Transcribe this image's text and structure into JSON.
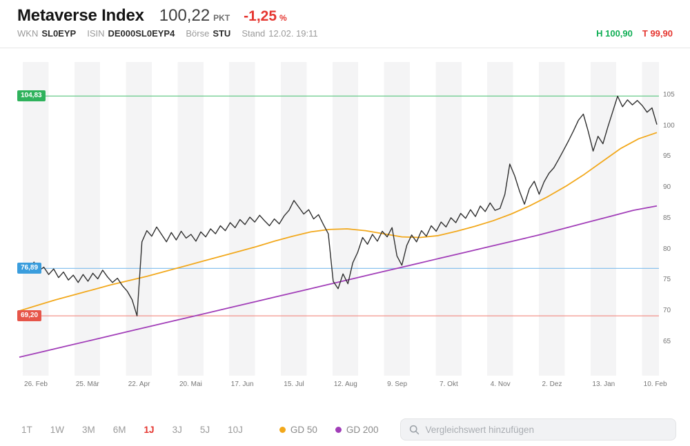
{
  "header": {
    "title": "Metaverse Index",
    "price": "100,22",
    "price_unit": "PKT",
    "change": "-1,25",
    "change_unit": "%",
    "change_color": "#e5352f",
    "meta": [
      {
        "label": "WKN",
        "value": "SL0EYP",
        "bold": true
      },
      {
        "label": "ISIN",
        "value": "DE000SL0EYP4",
        "bold": true
      },
      {
        "label": "Börse",
        "value": "STU",
        "bold": true
      },
      {
        "label": "Stand",
        "value": "12.02. 19:11",
        "bold": false
      }
    ],
    "high_label": "H",
    "high_value": "100,90",
    "high_color": "#0fae54",
    "low_label": "T",
    "low_value": "99,90",
    "low_color": "#e5352f"
  },
  "chart_data": {
    "type": "line",
    "title": "Metaverse Index — 1 Jahr",
    "x_labels": [
      "26. Feb",
      "25. Mär",
      "22. Apr",
      "20. Mai",
      "17. Jun",
      "15. Jul",
      "12. Aug",
      "9. Sep",
      "7. Okt",
      "4. Nov",
      "2. Dez",
      "13. Jan",
      "10. Feb"
    ],
    "y_ticks": [
      105,
      100,
      95,
      90,
      85,
      80,
      75,
      70,
      65
    ],
    "ylim": [
      62,
      108
    ],
    "y_axis_side": "right",
    "reference_lines": [
      {
        "id": "high",
        "label": "104,83",
        "value": 104.83,
        "line_color": "#57c47c",
        "badge_color": "#2fb25c"
      },
      {
        "id": "mid",
        "label": "76,89",
        "value": 76.89,
        "line_color": "#7cbcec",
        "badge_color": "#3a9ddd"
      },
      {
        "id": "low",
        "label": "69,20",
        "value": 69.2,
        "line_color": "#f2867c",
        "badge_color": "#e65549"
      }
    ],
    "series": [
      {
        "name": "GD 200",
        "color": "#a13db8",
        "width": 1.8,
        "values": [
          62.5,
          63.4,
          64.3,
          65.2,
          66.1,
          67.0,
          67.9,
          68.8,
          69.7,
          70.6,
          71.5,
          72.4,
          73.3,
          74.2,
          75.1,
          76.0,
          76.9,
          77.8,
          78.7,
          79.6,
          80.5,
          81.4,
          82.3,
          83.3,
          84.3,
          85.3,
          86.3,
          87.0
        ]
      },
      {
        "name": "GD 50",
        "color": "#f2a81b",
        "width": 1.8,
        "values": [
          70.0,
          70.9,
          71.8,
          72.6,
          73.4,
          74.2,
          74.9,
          75.6,
          76.4,
          77.2,
          78.0,
          78.8,
          79.6,
          80.4,
          81.3,
          82.1,
          82.8,
          83.2,
          83.3,
          83.0,
          82.5,
          82.0,
          81.9,
          82.2,
          82.9,
          83.7,
          84.6,
          85.7,
          87.0,
          88.5,
          90.2,
          92.1,
          94.2,
          96.3,
          97.9,
          98.9
        ]
      },
      {
        "name": "Metaverse Index",
        "color": "#2e2e2e",
        "width": 1.4,
        "values": [
          76.4,
          77.6,
          76.8,
          77.9,
          76.5,
          77.1,
          75.9,
          76.8,
          75.4,
          76.3,
          75.0,
          75.8,
          74.6,
          75.9,
          74.8,
          76.1,
          75.2,
          76.6,
          75.5,
          74.6,
          75.3,
          74.1,
          73.2,
          71.8,
          69.2,
          81.2,
          83.0,
          82.1,
          83.6,
          82.4,
          81.2,
          82.7,
          81.5,
          82.9,
          81.8,
          82.4,
          81.3,
          82.8,
          82.0,
          83.3,
          82.5,
          83.8,
          83.0,
          84.3,
          83.5,
          84.8,
          84.0,
          85.2,
          84.4,
          85.5,
          84.6,
          83.8,
          84.9,
          84.1,
          85.4,
          86.3,
          87.9,
          86.8,
          85.7,
          86.4,
          84.9,
          85.6,
          84.0,
          82.5,
          74.8,
          73.6,
          76.0,
          74.4,
          77.8,
          79.5,
          81.9,
          80.8,
          82.4,
          81.3,
          82.9,
          82.0,
          83.5,
          78.9,
          77.4,
          80.6,
          82.3,
          81.2,
          83.0,
          82.1,
          83.8,
          82.9,
          84.4,
          83.6,
          85.1,
          84.3,
          85.8,
          85.0,
          86.4,
          85.3,
          87.0,
          86.1,
          87.5,
          86.3,
          86.6,
          88.9,
          93.8,
          91.9,
          89.4,
          87.3,
          89.8,
          91.0,
          88.9,
          90.9,
          92.3,
          93.2,
          94.6,
          96.1,
          97.6,
          99.2,
          100.9,
          101.9,
          99.1,
          95.9,
          98.3,
          97.1,
          99.8,
          102.3,
          104.8,
          103.1,
          104.2,
          103.4,
          104.1,
          103.3,
          102.2,
          102.9,
          100.2
        ]
      }
    ]
  },
  "footer": {
    "ranges": [
      {
        "label": "1T",
        "active": false
      },
      {
        "label": "1W",
        "active": false
      },
      {
        "label": "3M",
        "active": false
      },
      {
        "label": "6M",
        "active": false
      },
      {
        "label": "1J",
        "active": true
      },
      {
        "label": "3J",
        "active": false
      },
      {
        "label": "5J",
        "active": false
      },
      {
        "label": "10J",
        "active": false
      }
    ],
    "legend": [
      {
        "label": "GD 50",
        "color": "#f2a81b"
      },
      {
        "label": "GD 200",
        "color": "#a13db8"
      }
    ],
    "search_placeholder": "Vergleichswert hinzufügen"
  }
}
